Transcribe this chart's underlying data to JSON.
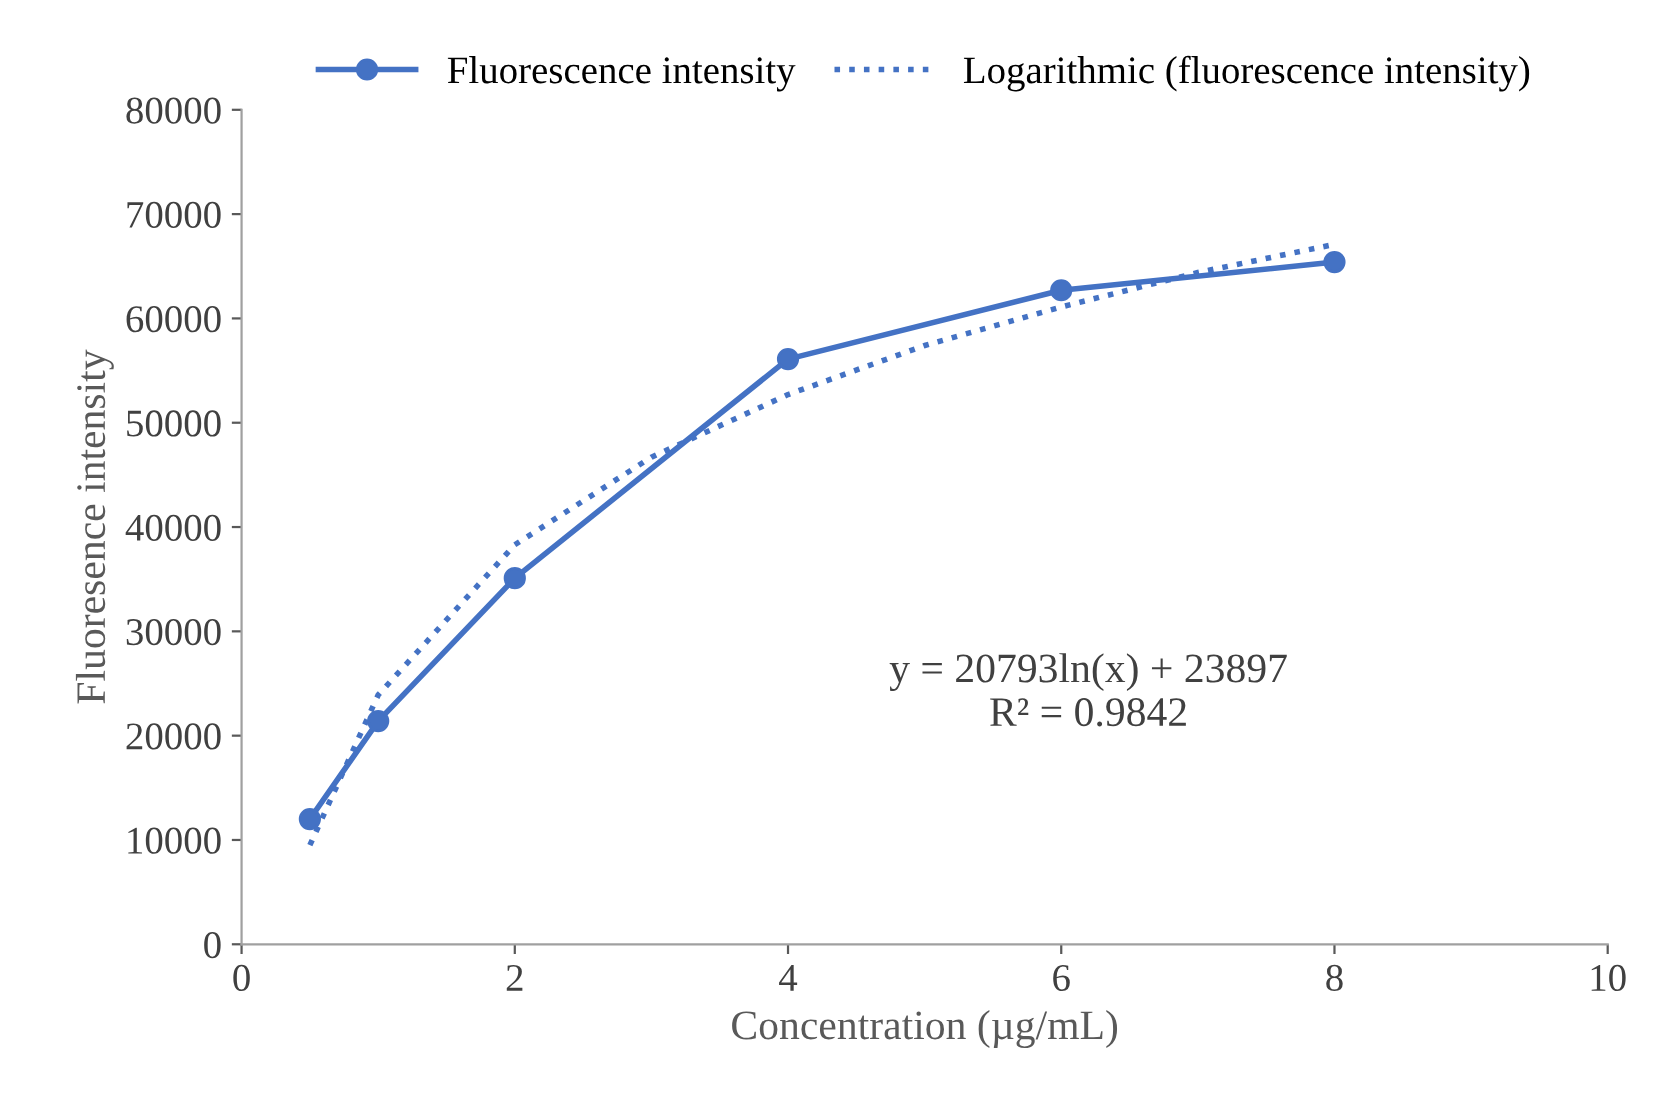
{
  "chart_data": {
    "type": "line",
    "xlabel": "Concentration (µg/mL)",
    "ylabel": "Fluoresence intensity",
    "xlim": [
      0,
      10
    ],
    "xticks": [
      0,
      2,
      4,
      6,
      8,
      10
    ],
    "ylim": [
      0,
      80000
    ],
    "yticks": [
      0,
      10000,
      20000,
      30000,
      40000,
      50000,
      60000,
      70000,
      80000
    ],
    "grid": false,
    "legend": "top",
    "series": [
      {
        "name": "Fluorescence intensity",
        "color": "#4472c4",
        "x": [
          0.5,
          1,
          2,
          4,
          6,
          8
        ],
        "values": [
          12000,
          21400,
          35100,
          56100,
          62700,
          65400
        ],
        "marker": "circle",
        "line_style": "solid"
      },
      {
        "name": "Logarithmic (fluorescence intensity)",
        "color": "#4472c4",
        "x": [
          0.5,
          1,
          2,
          3,
          4,
          5,
          6,
          7,
          8
        ],
        "values": [
          9500,
          23900,
          38300,
          46700,
          52700,
          57400,
          61100,
          64400,
          67100
        ],
        "marker": "none",
        "line_style": "dotted"
      }
    ],
    "annotations": [
      "y = 20793ln(x) + 23897\nR² = 0.9842"
    ]
  }
}
